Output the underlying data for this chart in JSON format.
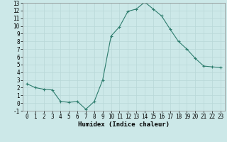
{
  "x": [
    0,
    1,
    2,
    3,
    4,
    5,
    6,
    7,
    8,
    9,
    10,
    11,
    12,
    13,
    14,
    15,
    16,
    17,
    18,
    19,
    20,
    21,
    22,
    23
  ],
  "y": [
    2.5,
    2.0,
    1.8,
    1.7,
    0.2,
    0.1,
    0.2,
    -0.8,
    0.2,
    3.0,
    8.7,
    9.9,
    11.9,
    12.2,
    13.1,
    12.2,
    11.3,
    9.6,
    8.0,
    7.0,
    5.8,
    4.8,
    4.7,
    4.6
  ],
  "xlabel": "Humidex (Indice chaleur)",
  "line_color": "#2e7d6e",
  "marker": "+",
  "bg_color": "#cce8e8",
  "grid_color": "#b8d8d8",
  "ylim": [
    -1,
    13
  ],
  "xlim": [
    -0.5,
    23.5
  ],
  "yticks": [
    -1,
    0,
    1,
    2,
    3,
    4,
    5,
    6,
    7,
    8,
    9,
    10,
    11,
    12,
    13
  ],
  "xticks": [
    0,
    1,
    2,
    3,
    4,
    5,
    6,
    7,
    8,
    9,
    10,
    11,
    12,
    13,
    14,
    15,
    16,
    17,
    18,
    19,
    20,
    21,
    22,
    23
  ],
  "label_fontsize": 6.5,
  "tick_fontsize": 5.5
}
